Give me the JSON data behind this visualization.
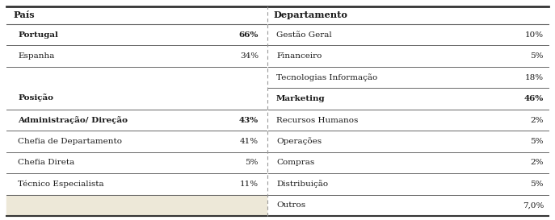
{
  "left_col_header": "País",
  "right_col_header": "Departamento",
  "left_rows": [
    {
      "label": "Portugal",
      "value": "66%",
      "bold_label": true,
      "bold_value": true
    },
    {
      "label": "Espanha",
      "value": "34%",
      "bold_label": false,
      "bold_value": false
    },
    {
      "label": "",
      "value": "",
      "bold_label": false,
      "bold_value": false,
      "double_height": true,
      "posicao_label": "Posição"
    },
    {
      "label": "Administração/ Direção",
      "value": "43%",
      "bold_label": true,
      "bold_value": true
    },
    {
      "label": "Chefia de Departamento",
      "value": "41%",
      "bold_label": false,
      "bold_value": false
    },
    {
      "label": "Chefia Direta",
      "value": "5%",
      "bold_label": false,
      "bold_value": false
    },
    {
      "label": "Técnico Especialista",
      "value": "11%",
      "bold_label": false,
      "bold_value": false
    },
    {
      "label": "",
      "value": "",
      "bold_label": false,
      "bold_value": false,
      "shaded": true
    }
  ],
  "right_rows": [
    {
      "label": "Gestão Geral",
      "value": "10%",
      "bold_label": false,
      "bold_value": false
    },
    {
      "label": "Financeiro",
      "value": "5%",
      "bold_label": false,
      "bold_value": false
    },
    {
      "label": "Tecnologias Informação",
      "value": "18%",
      "bold_label": false,
      "bold_value": false
    },
    {
      "label": "Marketing",
      "value": "46%",
      "bold_label": true,
      "bold_value": true
    },
    {
      "label": "Recursos Humanos",
      "value": "2%",
      "bold_label": false,
      "bold_value": false
    },
    {
      "label": "Operações",
      "value": "5%",
      "bold_label": false,
      "bold_value": false
    },
    {
      "label": "Compras",
      "value": "2%",
      "bold_label": false,
      "bold_value": false
    },
    {
      "label": "Distribuição",
      "value": "5%",
      "bold_label": false,
      "bold_value": false
    },
    {
      "label": "Outros",
      "value": "7,0%",
      "bold_label": false,
      "bold_value": false
    }
  ],
  "bg_color": "#ffffff",
  "shaded_color": "#ede8d8",
  "line_color": "#666666",
  "thick_line_color": "#333333",
  "dashed_color": "#999999",
  "font_size": 7.5,
  "header_font_size": 8.2
}
